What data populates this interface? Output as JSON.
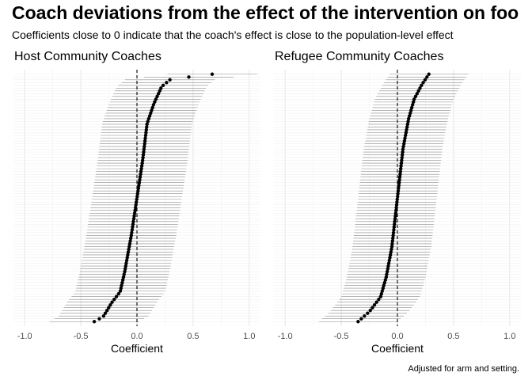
{
  "title": "Coach deviations from the effect of the intervention on foo",
  "subtitle": "Coefficients close to 0 indicate that the coach's effect is close to the population-level effect",
  "caption": "Adjusted for arm and setting.",
  "chart_data": [
    {
      "type": "errorbar-dot",
      "title": "Host Community Coaches",
      "xlabel": "Coefficient",
      "ylabel": "",
      "xlim": [
        -1.1,
        1.1
      ],
      "x_ticks": [
        -1.0,
        -0.5,
        0.0,
        0.5,
        1.0
      ],
      "x_tick_labels": [
        "-1.0",
        "-0.5",
        "0.0",
        "0.5",
        "1.0"
      ],
      "reference_line": 0,
      "grid": true,
      "points_sorted": true,
      "n_coaches": 90,
      "estimate_range": [
        -0.38,
        0.67
      ],
      "interval_halfwidth_approx": 0.4,
      "estimate_quantiles": [
        [
          0.0,
          -0.38
        ],
        [
          0.02,
          -0.3
        ],
        [
          0.08,
          -0.22
        ],
        [
          0.12,
          -0.15
        ],
        [
          0.2,
          -0.11
        ],
        [
          0.35,
          -0.05
        ],
        [
          0.5,
          0.0
        ],
        [
          0.65,
          0.05
        ],
        [
          0.8,
          0.09
        ],
        [
          0.88,
          0.15
        ],
        [
          0.95,
          0.22
        ],
        [
          0.98,
          0.3
        ],
        [
          1.0,
          0.67
        ]
      ]
    },
    {
      "type": "errorbar-dot",
      "title": "Refugee Community Coaches",
      "xlabel": "Coefficient",
      "ylabel": "",
      "xlim": [
        -1.1,
        1.1
      ],
      "x_ticks": [
        -1.0,
        -0.5,
        0.0,
        0.5,
        1.0
      ],
      "x_tick_labels": [
        "-1.0",
        "-0.5",
        "0.0",
        "0.5",
        "1.0"
      ],
      "reference_line": 0,
      "grid": true,
      "points_sorted": true,
      "n_coaches": 90,
      "estimate_range": [
        -0.35,
        0.28
      ],
      "interval_halfwidth_approx": 0.35,
      "estimate_quantiles": [
        [
          0.0,
          -0.35
        ],
        [
          0.04,
          -0.25
        ],
        [
          0.1,
          -0.15
        ],
        [
          0.18,
          -0.1
        ],
        [
          0.3,
          -0.05
        ],
        [
          0.5,
          0.0
        ],
        [
          0.7,
          0.05
        ],
        [
          0.82,
          0.1
        ],
        [
          0.9,
          0.15
        ],
        [
          0.96,
          0.22
        ],
        [
          1.0,
          0.28
        ]
      ]
    }
  ]
}
